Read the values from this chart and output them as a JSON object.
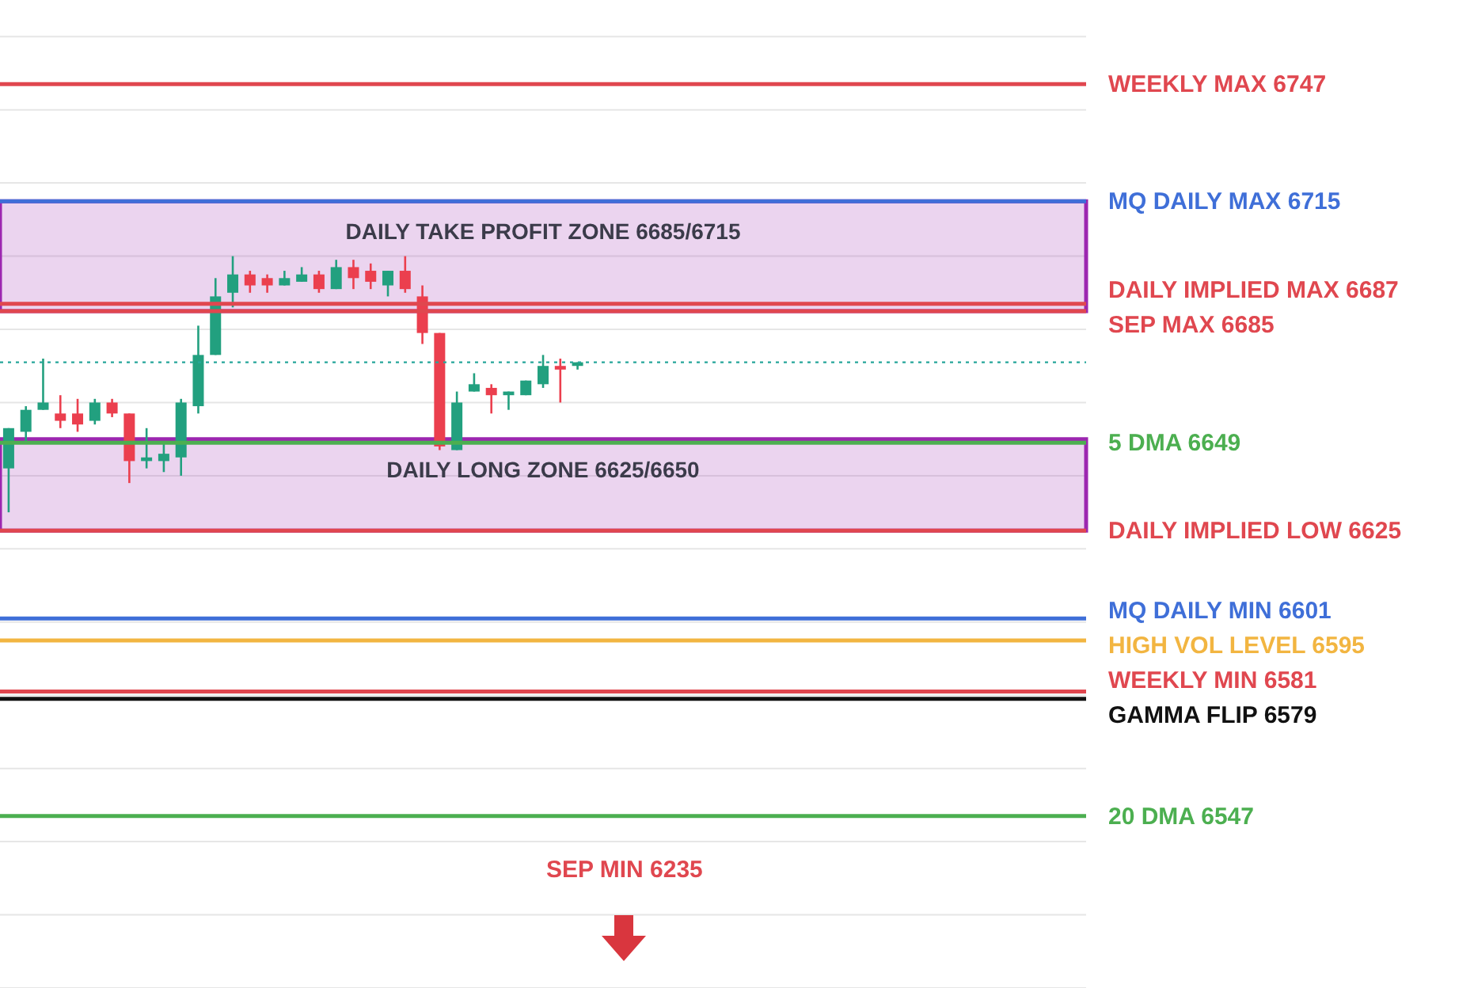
{
  "chart_data": {
    "type": "candlestick",
    "categories": [
      null,
      null,
      null,
      null,
      null,
      null,
      null,
      null,
      null,
      null,
      null,
      null,
      null,
      null,
      null,
      null,
      null,
      null,
      null,
      null,
      null,
      null,
      null,
      null,
      null,
      null,
      null,
      null,
      null,
      null,
      null,
      null,
      null,
      null,
      null,
      null,
      null,
      null,
      null,
      null,
      null,
      null,
      null,
      null,
      null,
      null,
      null,
      null,
      null,
      null,
      null,
      null,
      null,
      null,
      null,
      null,
      null,
      null,
      null,
      null,
      null,
      null,
      null
    ],
    "ohlc": [
      [
        6642,
        6653,
        6630,
        6653
      ],
      [
        6652,
        6659,
        6649,
        6658
      ],
      [
        6658,
        6672,
        6658,
        6660
      ],
      [
        6657,
        6662,
        6653,
        6655
      ],
      [
        6657,
        6661,
        6652,
        6654
      ],
      [
        6655,
        6661,
        6654,
        6660
      ],
      [
        6660,
        6661,
        6656,
        6657
      ],
      [
        6657,
        6657,
        6638,
        6644
      ],
      [
        6644,
        6653,
        6642,
        6645
      ],
      [
        6644,
        6649,
        6641,
        6646
      ],
      [
        6645,
        6661,
        6640,
        6660
      ],
      [
        6659,
        6681,
        6657,
        6673
      ],
      [
        6673,
        6694,
        6673,
        6689
      ],
      [
        6690,
        6700,
        6686,
        6695
      ],
      [
        6695,
        6696,
        6690,
        6692
      ],
      [
        6694,
        6695,
        6690,
        6692
      ],
      [
        6692,
        6696,
        6692,
        6694
      ],
      [
        6693,
        6697,
        6693,
        6695
      ],
      [
        6695,
        6696,
        6690,
        6691
      ],
      [
        6691,
        6699,
        6691,
        6697
      ],
      [
        6697,
        6699,
        6691,
        6694
      ],
      [
        6696,
        6698,
        6691,
        6693
      ],
      [
        6692,
        6696,
        6689,
        6696
      ],
      [
        6696,
        6700,
        6690,
        6691
      ],
      [
        6689,
        6692,
        6676,
        6679
      ],
      [
        6679,
        6679,
        6647,
        6648
      ],
      [
        6647,
        6663,
        6647,
        6660
      ],
      [
        6663,
        6668,
        6663,
        6665
      ],
      [
        6664,
        6665,
        6657,
        6662
      ],
      [
        6662,
        6663,
        6658,
        6663
      ],
      [
        6662,
        6666,
        6662,
        6666
      ],
      [
        6665,
        6673,
        6664,
        6670
      ],
      [
        6670,
        6672,
        6660,
        6669
      ],
      [
        6670,
        6671,
        6669,
        6671
      ],
      null,
      null,
      null,
      null,
      null,
      null,
      null,
      null,
      null,
      null,
      null,
      null,
      null,
      null,
      null,
      null,
      null,
      null,
      null,
      null,
      null,
      null,
      null,
      null,
      null,
      null,
      null,
      null,
      null
    ],
    "colors": [
      "#22a07f",
      "#22a07f",
      "#22a07f",
      "#eb3f4e",
      "#eb3f4e",
      "#22a07f",
      "#eb3f4e",
      "#eb3f4e",
      "#22a07f",
      "#22a07f",
      "#22a07f",
      "#22a07f",
      "#22a07f",
      "#22a07f",
      "#eb3f4e",
      "#eb3f4e",
      "#22a07f",
      "#22a07f",
      "#eb3f4e",
      "#22a07f",
      "#eb3f4e",
      "#eb3f4e",
      "#22a07f",
      "#eb3f4e",
      "#eb3f4e",
      "#eb3f4e",
      "#22a07f",
      "#22a07f",
      "#eb3f4e",
      "#22a07f",
      "#22a07f",
      "#22a07f",
      "#eb3f4e",
      "#22a07f",
      null,
      null,
      null,
      null,
      null,
      null,
      null,
      null,
      null,
      null,
      null,
      null,
      null,
      null,
      null,
      null,
      null,
      null,
      null,
      null,
      null,
      null,
      null,
      null,
      null,
      null,
      null,
      null,
      null
    ],
    "ylim": [
      6500,
      6770
    ],
    "yticks": [
      {
        "value": 6500,
        "label": null
      },
      {
        "value": 6520,
        "label": null
      },
      {
        "value": 6540,
        "label": null
      },
      {
        "value": 6560,
        "label": null
      },
      {
        "value": 6580,
        "label": null
      },
      {
        "value": 6600,
        "label": null
      },
      {
        "value": 6620,
        "label": null
      },
      {
        "value": 6640,
        "label": null
      },
      {
        "value": 6660,
        "label": null
      },
      {
        "value": 6680,
        "label": null
      },
      {
        "value": 6700,
        "label": null
      },
      {
        "value": 6720,
        "label": null
      },
      {
        "value": 6740,
        "label": null
      },
      {
        "value": 6760,
        "label": null
      }
    ],
    "grid": "y",
    "tick_labels": false,
    "bands": [
      {
        "axis": "y",
        "from": 6685,
        "to": 6715,
        "label": "DAILY TAKE PROFIT ZONE 6685/6715",
        "color": "#9c27b0"
      },
      {
        "axis": "y",
        "from": 6625,
        "to": 6650,
        "label": "DAILY LONG ZONE 6625/6650",
        "color": "#9c27b0"
      }
    ],
    "ref_lines": [
      {
        "axis": "y",
        "value": 6747,
        "label": "WEEKLY MAX 6747",
        "color": "#e0474f"
      },
      {
        "axis": "y",
        "value": 6715,
        "label": "MQ DAILY MAX 6715",
        "color": "#3f6fd8"
      },
      {
        "axis": "y",
        "value": 6687,
        "label": "DAILY IMPLIED MAX 6687",
        "color": "#e0474f"
      },
      {
        "axis": "y",
        "value": 6685,
        "label": "SEP MAX 6685",
        "color": "#e0474f"
      },
      {
        "axis": "y",
        "value": 6649,
        "label": "5 DMA 6649",
        "color": "#4caf50"
      },
      {
        "axis": "y",
        "value": 6625,
        "label": "DAILY IMPLIED LOW 6625",
        "color": "#e0474f"
      },
      {
        "axis": "y",
        "value": 6601,
        "label": "MQ DAILY MIN 6601",
        "color": "#3f6fd8"
      },
      {
        "axis": "y",
        "value": 6595,
        "label": "HIGH VOL LEVEL 6595",
        "color": "#f2b541"
      },
      {
        "axis": "y",
        "value": 6581,
        "label": "WEEKLY MIN 6581",
        "color": "#e0474f"
      },
      {
        "axis": "y",
        "value": 6579,
        "label": "GAMMA FLIP 6579",
        "color": "#111111"
      },
      {
        "axis": "y",
        "value": 6547,
        "label": "20 DMA 6547",
        "color": "#4caf50"
      },
      {
        "axis": "y",
        "value": 6671,
        "color": "#26a69a",
        "line_style": "dotted"
      }
    ],
    "annotations": [
      "SEP MIN 6235"
    ]
  }
}
